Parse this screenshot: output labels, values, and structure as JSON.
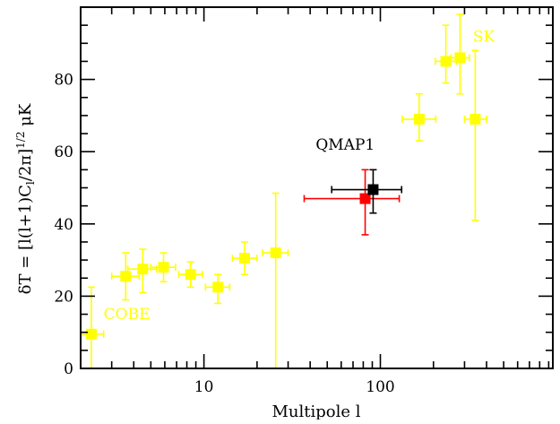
{
  "chart_data": {
    "type": "scatter",
    "title": "",
    "xlabel": "Multipole l",
    "ylabel": "δT = [l(l+1)C_l/2π]^1/2 μK",
    "ylabel_parts": {
      "lead": "δT = [l(l+1)C",
      "sub": "l",
      "mid": "/2π]",
      "sup": "1/2",
      "tail": " μK"
    },
    "x_scale": "log",
    "xlim": [
      2,
      950
    ],
    "ylim": [
      0,
      100
    ],
    "x_ticks": [
      {
        "value": 10,
        "label": "10"
      },
      {
        "value": 100,
        "label": "100"
      }
    ],
    "y_ticks": [
      {
        "value": 0,
        "label": "0"
      },
      {
        "value": 20,
        "label": "20"
      },
      {
        "value": 40,
        "label": "40"
      },
      {
        "value": 60,
        "label": "60"
      },
      {
        "value": 80,
        "label": "80"
      }
    ],
    "grid": false,
    "colors": {
      "cobe_sk": "#ffff00",
      "qmap_a": "#ff0000",
      "qmap_b": "#000000",
      "axis": "#000000"
    },
    "annotations": [
      {
        "text": "COBE",
        "x": 2.7,
        "y": 13.6,
        "color": "#ffff00"
      },
      {
        "text": "SK",
        "x": 335,
        "y": 90.5,
        "color": "#ffff00"
      },
      {
        "text": "QMAP1",
        "x": 43,
        "y": 60.6,
        "color": "#000000"
      }
    ],
    "series": [
      {
        "color": "#ffff00",
        "points": [
          {
            "x": 2.3,
            "y": 9.5,
            "x_lo": 2.0,
            "x_hi": 2.7,
            "y_lo": 0,
            "y_hi": 22.5
          },
          {
            "x": 3.6,
            "y": 25.5,
            "x_lo": 3.0,
            "x_hi": 4.3,
            "y_lo": 19,
            "y_hi": 32
          },
          {
            "x": 4.5,
            "y": 27.5,
            "x_lo": 3.7,
            "x_hi": 5.4,
            "y_lo": 21,
            "y_hi": 33
          },
          {
            "x": 5.9,
            "y": 28,
            "x_lo": 5.0,
            "x_hi": 6.9,
            "y_lo": 24,
            "y_hi": 32
          },
          {
            "x": 8.4,
            "y": 26,
            "x_lo": 7.2,
            "x_hi": 9.8,
            "y_lo": 22.5,
            "y_hi": 29.5
          },
          {
            "x": 12,
            "y": 22.5,
            "x_lo": 10.2,
            "x_hi": 14,
            "y_lo": 18,
            "y_hi": 26
          },
          {
            "x": 17,
            "y": 30.5,
            "x_lo": 14.5,
            "x_hi": 20,
            "y_lo": 26,
            "y_hi": 35
          },
          {
            "x": 25.5,
            "y": 32,
            "x_lo": 21.5,
            "x_hi": 30,
            "y_lo": 0,
            "y_hi": 48.5
          },
          {
            "x": 166,
            "y": 69,
            "x_lo": 133,
            "x_hi": 206,
            "y_lo": 63,
            "y_hi": 76
          },
          {
            "x": 235,
            "y": 85,
            "x_lo": 205,
            "x_hi": 271,
            "y_lo": 79,
            "y_hi": 95
          },
          {
            "x": 283,
            "y": 86,
            "x_lo": 252,
            "x_hi": 320,
            "y_lo": 76,
            "y_hi": 98
          },
          {
            "x": 345,
            "y": 69,
            "x_lo": 300,
            "x_hi": 400,
            "y_lo": 41,
            "y_hi": 88
          }
        ]
      },
      {
        "color": "#ff0000",
        "points": [
          {
            "x": 82,
            "y": 47,
            "x_lo": 37,
            "x_hi": 128,
            "y_lo": 37,
            "y_hi": 55
          }
        ]
      },
      {
        "color": "#000000",
        "points": [
          {
            "x": 91,
            "y": 49.5,
            "x_lo": 53,
            "x_hi": 132,
            "y_lo": 43,
            "y_hi": 55
          }
        ]
      }
    ]
  }
}
